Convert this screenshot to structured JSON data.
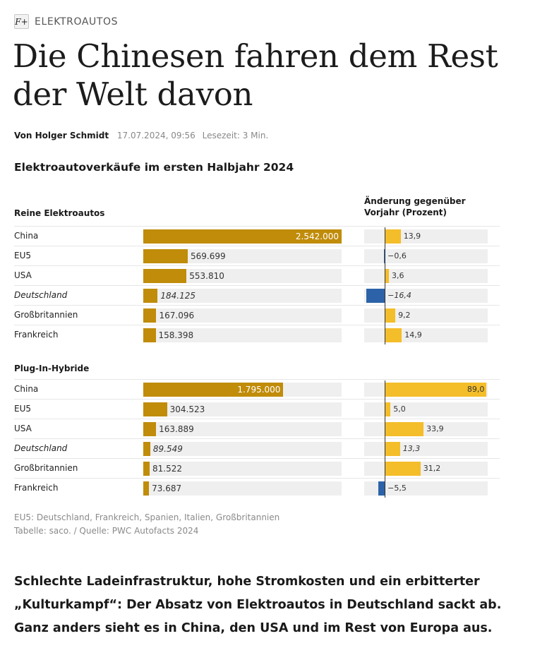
{
  "kicker": {
    "icon": "fplus-icon",
    "icon_text": "F+",
    "label": "ELEKTROAUTOS"
  },
  "headline": "Die Chinesen fahren dem Rest der Welt davon",
  "byline": {
    "author": "Von Holger Schmidt",
    "date": "17.07.2024, 09:56",
    "reading_time": "Lesezeit: 3 Min."
  },
  "chart_data": {
    "type": "bar",
    "title": "Elektroautoverkäufe im ersten Halbjahr 2024",
    "change_header": "Änderung gegenüber Vorjahr (Prozent)",
    "colors": {
      "sales_bar": "#c08c0a",
      "change_positive": "#f4bd2a",
      "change_negative": "#2c63a8",
      "track": "#efefef"
    },
    "sales_max": 2542000,
    "change_range": [
      -18,
      90
    ],
    "groups": [
      {
        "name": "Reine Elektroautos",
        "rows": [
          {
            "country": "China",
            "sales": 2542000,
            "sales_label": "2.542.000",
            "change": 13.9,
            "change_label": "13,9",
            "italic": false
          },
          {
            "country": "EU5",
            "sales": 569699,
            "sales_label": "569.699",
            "change": -0.6,
            "change_label": "−0,6",
            "italic": false
          },
          {
            "country": "USA",
            "sales": 553810,
            "sales_label": "553.810",
            "change": 3.6,
            "change_label": "3,6",
            "italic": false
          },
          {
            "country": "Deutschland",
            "sales": 184125,
            "sales_label": "184.125",
            "change": -16.4,
            "change_label": "−16,4",
            "italic": true
          },
          {
            "country": "Großbritannien",
            "sales": 167096,
            "sales_label": "167.096",
            "change": 9.2,
            "change_label": "9,2",
            "italic": false
          },
          {
            "country": "Frankreich",
            "sales": 158398,
            "sales_label": "158.398",
            "change": 14.9,
            "change_label": "14,9",
            "italic": false
          }
        ]
      },
      {
        "name": "Plug-In-Hybride",
        "rows": [
          {
            "country": "China",
            "sales": 1795000,
            "sales_label": "1.795.000",
            "change": 89.0,
            "change_label": "89,0",
            "italic": false
          },
          {
            "country": "EU5",
            "sales": 304523,
            "sales_label": "304.523",
            "change": 5.0,
            "change_label": "5,0",
            "italic": false
          },
          {
            "country": "USA",
            "sales": 163889,
            "sales_label": "163.889",
            "change": 33.9,
            "change_label": "33,9",
            "italic": false
          },
          {
            "country": "Deutschland",
            "sales": 89549,
            "sales_label": "89.549",
            "change": 13.3,
            "change_label": "13,3",
            "italic": true
          },
          {
            "country": "Großbritannien",
            "sales": 81522,
            "sales_label": "81.522",
            "change": 31.2,
            "change_label": "31,2",
            "italic": false
          },
          {
            "country": "Frankreich",
            "sales": 73687,
            "sales_label": "73.687",
            "change": -5.5,
            "change_label": "−5,5",
            "italic": false
          }
        ]
      }
    ],
    "notes": [
      "EU5: Deutschland, Frankreich, Spanien, Italien, Großbritannien",
      "Tabelle: saco. / Quelle: PWC Autofacts 2024"
    ]
  },
  "lead": "Schlechte Ladeinfrastruktur, hohe Stromkosten und ein erbitterter „Kulturkampf“: Der Absatz von Elektroautos in Deutschland sackt ab. Ganz anders sieht es in China, den USA und im Rest von Europa aus."
}
